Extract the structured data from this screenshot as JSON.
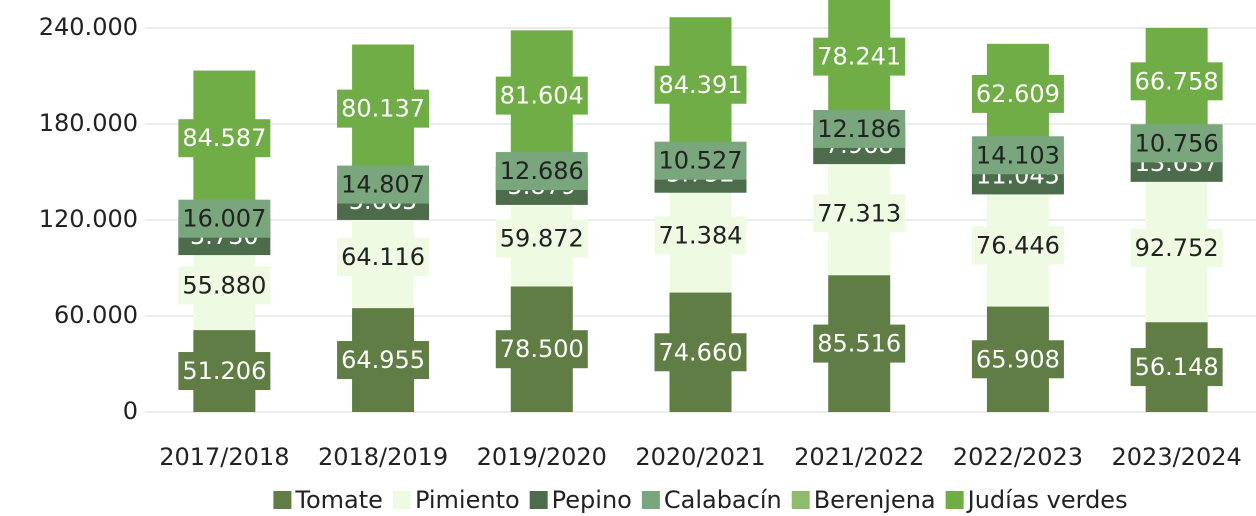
{
  "chart_data": {
    "type": "stacked_bar",
    "categories": [
      "2017/2018",
      "2018/2019",
      "2019/2020",
      "2020/2021",
      "2021/2022",
      "2022/2023",
      "2023/2024"
    ],
    "series": [
      {
        "name": "Tomate",
        "color": "#5f7d45",
        "values": [
          51206,
          64955,
          78500,
          74660,
          85516,
          65908,
          56148
        ],
        "value_labels": [
          "51.206",
          "64.955",
          "78.500",
          "74.660",
          "85.516",
          "65.908",
          "56.148"
        ]
      },
      {
        "name": "Pimiento",
        "color": "#effae2",
        "values": [
          55880,
          64116,
          59872,
          71384,
          77313,
          76446,
          92752
        ],
        "value_labels": [
          "55.880",
          "64.116",
          "59.872",
          "71.384",
          "77.313",
          "76.446",
          "92.752"
        ]
      },
      {
        "name": "Pepino",
        "color": "#4d6c4b",
        "values": [
          5730,
          5665,
          5879,
          5752,
          7968,
          11045,
          13637
        ],
        "value_labels": [
          "5.730",
          "5.665",
          "5.879",
          "5.752",
          "7.968",
          "11.045",
          "13.637"
        ]
      },
      {
        "name": "Calabacín",
        "color": "#7aa67e",
        "values": [
          16007,
          14807,
          12686,
          10527,
          12186,
          14103,
          10756
        ],
        "value_labels": [
          "16.007",
          "14.807",
          "12.686",
          "10.527",
          "12.186",
          "14.103",
          "10.756"
        ]
      },
      {
        "name": "Berenjena",
        "color": "#8fbb6c",
        "values": [
          null,
          null,
          null,
          null,
          null,
          null,
          null
        ]
      },
      {
        "name": "Judías verdes",
        "color": "#71ad47",
        "values": [
          84587,
          80137,
          81604,
          84391,
          78241,
          62609,
          66758
        ],
        "value_labels": [
          "84.587",
          "80.137",
          "81.604",
          "84.391",
          "78.241",
          "62.609",
          "66.758"
        ]
      }
    ],
    "ylim": [
      0,
      240000
    ],
    "yticks": [
      0,
      {
        "value": 60000,
        "label": "60.000"
      },
      {
        "value": 120000,
        "label": "120.000"
      },
      {
        "value": 180000,
        "label": "180.000"
      },
      {
        "value": 240000,
        "label": "240.000"
      }
    ],
    "grid": true,
    "legend": "bottom"
  }
}
